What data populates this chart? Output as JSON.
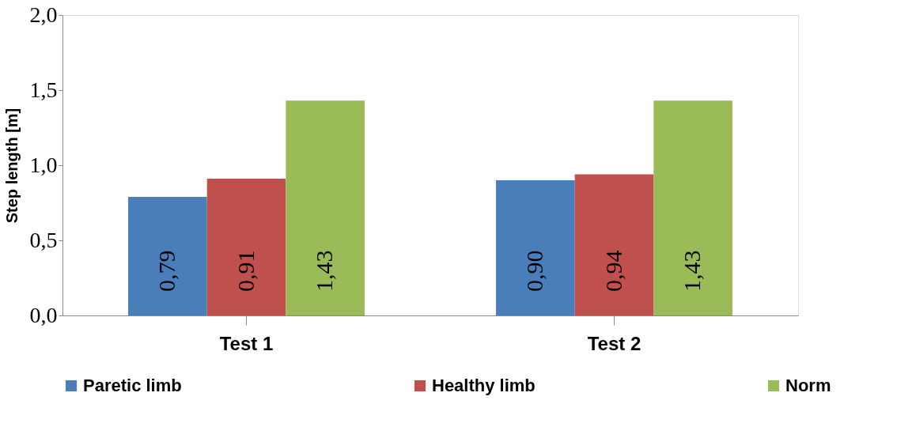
{
  "chart_data": {
    "type": "bar",
    "ylabel": "Step length [m]",
    "categories": [
      "Test 1",
      "Test 2"
    ],
    "series": [
      {
        "name": "Paretic limb",
        "color": "#4a7ebb",
        "values": [
          0.79,
          0.9
        ],
        "value_labels": [
          "0,79",
          "0,90"
        ]
      },
      {
        "name": "Healthy limb",
        "color": "#c0504d",
        "values": [
          0.91,
          0.94
        ],
        "value_labels": [
          "0,91",
          "0,94"
        ]
      },
      {
        "name": "Norm",
        "color": "#9bbb59",
        "values": [
          1.43,
          1.43
        ],
        "value_labels": [
          "1,43",
          "1,43"
        ]
      }
    ],
    "ylim": [
      0,
      2.0
    ],
    "yticks": [
      {
        "value": 0,
        "label": "0,0"
      },
      {
        "value": 0.5,
        "label": "0,5"
      },
      {
        "value": 1.0,
        "label": "1,0"
      },
      {
        "value": 1.5,
        "label": "1,5"
      },
      {
        "value": 2.0,
        "label": "2,0"
      }
    ],
    "grid": false,
    "legend": "bottom"
  }
}
